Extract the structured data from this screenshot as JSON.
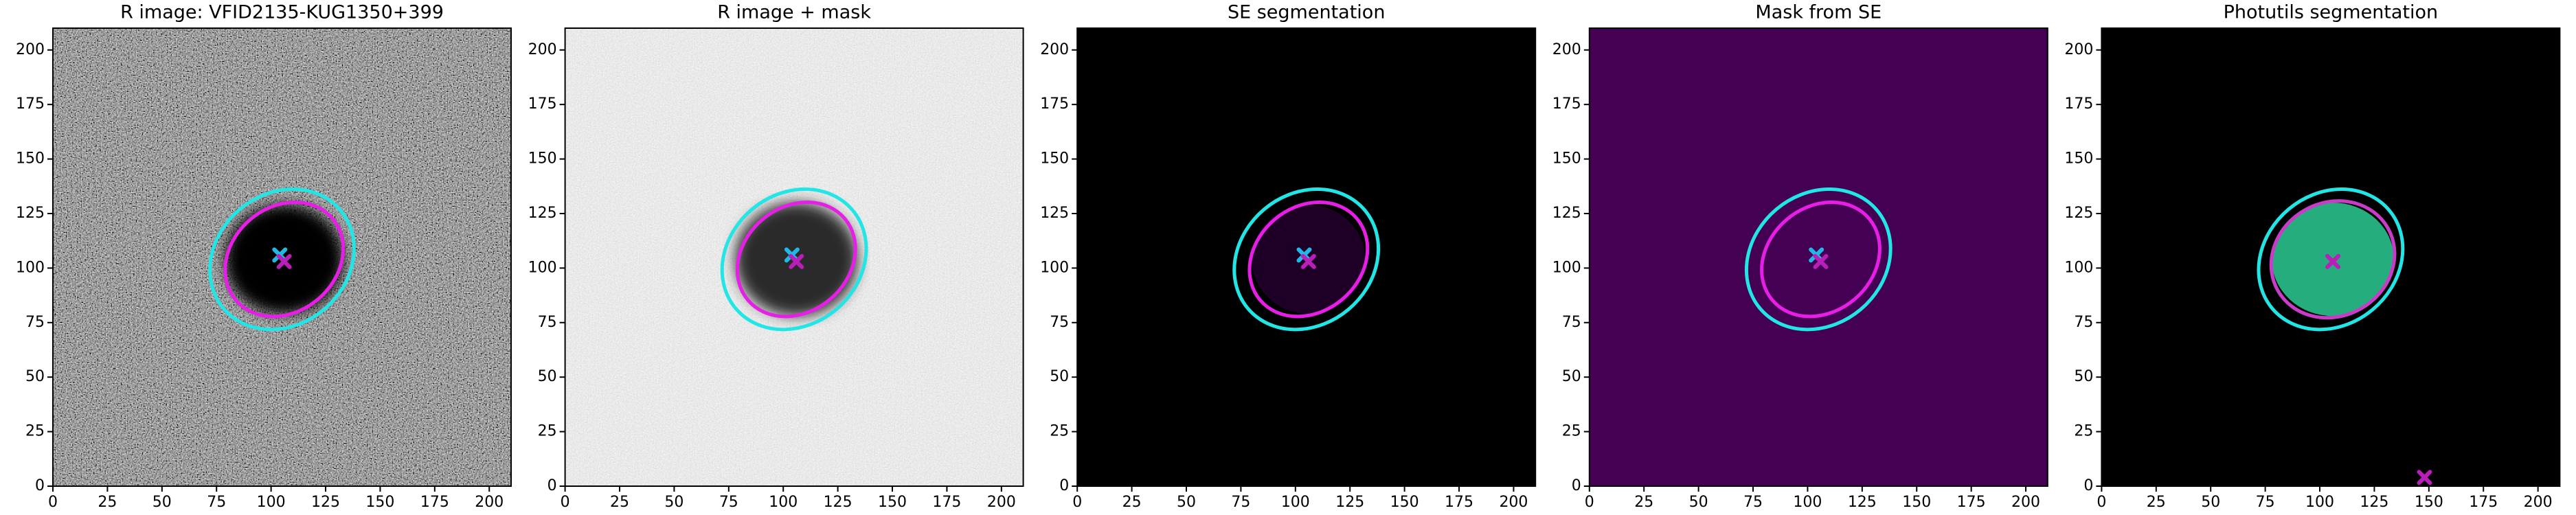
{
  "chart_data": [
    {
      "type": "image",
      "title": "R image: VFID2135-KUG1350+399",
      "background": "noise-dark",
      "xlim": [
        0,
        210
      ],
      "ylim": [
        0,
        210
      ],
      "xticks": [
        0,
        25,
        50,
        75,
        100,
        125,
        150,
        175,
        200
      ],
      "yticks": [
        0,
        25,
        50,
        75,
        100,
        125,
        150,
        175,
        200
      ],
      "segments": [
        {
          "cx": 106,
          "cy": 104,
          "rx": 27,
          "ry": 25,
          "color": "#000000"
        }
      ],
      "ellipses": [
        {
          "cx": 105,
          "cy": 104,
          "rx": 35,
          "ry": 30,
          "angle": 40,
          "color": "#22e5e5"
        },
        {
          "cx": 106,
          "cy": 104,
          "rx": 29,
          "ry": 24,
          "angle": 40,
          "color": "#e61ee6"
        }
      ],
      "markers": [
        {
          "x": 104,
          "y": 106,
          "color": "#22b8e5"
        },
        {
          "x": 106,
          "y": 103,
          "color": "#b81eb8"
        }
      ]
    },
    {
      "type": "image",
      "title": "R image + mask",
      "background": "noise-light",
      "xlim": [
        0,
        210
      ],
      "ylim": [
        0,
        210
      ],
      "xticks": [
        0,
        25,
        50,
        75,
        100,
        125,
        150,
        175,
        200
      ],
      "yticks": [
        0,
        25,
        50,
        75,
        100,
        125,
        150,
        175,
        200
      ],
      "segments": [
        {
          "cx": 106,
          "cy": 104,
          "rx": 28,
          "ry": 26,
          "color": "#2a2a2a"
        }
      ],
      "ellipses": [
        {
          "cx": 105,
          "cy": 104,
          "rx": 35,
          "ry": 30,
          "angle": 40,
          "color": "#22e5e5"
        },
        {
          "cx": 106,
          "cy": 104,
          "rx": 29,
          "ry": 24,
          "angle": 40,
          "color": "#e61ee6"
        }
      ],
      "markers": [
        {
          "x": 104,
          "y": 106,
          "color": "#22b8e5"
        },
        {
          "x": 106,
          "y": 103,
          "color": "#b81eb8"
        }
      ]
    },
    {
      "type": "image",
      "title": "SE segmentation",
      "background": "black",
      "xlim": [
        0,
        210
      ],
      "ylim": [
        0,
        210
      ],
      "xticks": [
        0,
        25,
        50,
        75,
        100,
        125,
        150,
        175,
        200
      ],
      "yticks": [
        0,
        25,
        50,
        75,
        100,
        125,
        150,
        175,
        200
      ],
      "segments": [
        {
          "cx": 106,
          "cy": 104,
          "rx": 26,
          "ry": 25,
          "color": "#1e0026"
        }
      ],
      "ellipses": [
        {
          "cx": 105,
          "cy": 104,
          "rx": 35,
          "ry": 30,
          "angle": 40,
          "color": "#22e5e5"
        },
        {
          "cx": 106,
          "cy": 104,
          "rx": 29,
          "ry": 24,
          "angle": 40,
          "color": "#e61ee6"
        }
      ],
      "markers": [
        {
          "x": 104,
          "y": 106,
          "color": "#22b8e5"
        },
        {
          "x": 106,
          "y": 103,
          "color": "#b81eb8"
        }
      ]
    },
    {
      "type": "image",
      "title": "Mask from SE",
      "background": "purple",
      "xlim": [
        0,
        210
      ],
      "ylim": [
        0,
        210
      ],
      "xticks": [
        0,
        25,
        50,
        75,
        100,
        125,
        150,
        175,
        200
      ],
      "yticks": [
        0,
        25,
        50,
        75,
        100,
        125,
        150,
        175,
        200
      ],
      "segments": [],
      "ellipses": [
        {
          "cx": 105,
          "cy": 104,
          "rx": 35,
          "ry": 30,
          "angle": 40,
          "color": "#22e5e5"
        },
        {
          "cx": 106,
          "cy": 104,
          "rx": 29,
          "ry": 24,
          "angle": 40,
          "color": "#e61ee6"
        }
      ],
      "markers": [
        {
          "x": 104,
          "y": 106,
          "color": "#22b8e5"
        },
        {
          "x": 106,
          "y": 103,
          "color": "#b81eb8"
        }
      ]
    },
    {
      "type": "image",
      "title": "Photutils segmentation",
      "background": "black",
      "xlim": [
        0,
        210
      ],
      "ylim": [
        0,
        210
      ],
      "xticks": [
        0,
        25,
        50,
        75,
        100,
        125,
        150,
        175,
        200
      ],
      "yticks": [
        0,
        25,
        50,
        75,
        100,
        125,
        150,
        175,
        200
      ],
      "segments": [
        {
          "cx": 106,
          "cy": 104,
          "rx": 28,
          "ry": 26,
          "color": "#26ad7d"
        }
      ],
      "ellipses": [
        {
          "cx": 105,
          "cy": 104,
          "rx": 35,
          "ry": 30,
          "angle": 40,
          "color": "#22e5e5"
        },
        {
          "cx": 106,
          "cy": 104,
          "rx": 29,
          "ry": 26,
          "angle": 30,
          "color": "#c83cc8"
        }
      ],
      "markers": [
        {
          "x": 106,
          "y": 103,
          "color": "#b81eb8"
        },
        {
          "x": 148,
          "y": 4,
          "color": "#b81eb8"
        }
      ]
    }
  ]
}
